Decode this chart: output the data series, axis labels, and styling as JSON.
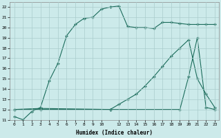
{
  "xlabel": "Humidex (Indice chaleur)",
  "bg_color": "#cceaea",
  "grid_color": "#aacccc",
  "line_color": "#1a6b5a",
  "ylim": [
    11,
    22.5
  ],
  "xlim": [
    -0.5,
    23.5
  ],
  "yticks": [
    11,
    12,
    13,
    14,
    15,
    16,
    17,
    18,
    19,
    20,
    21,
    22
  ],
  "xticks": [
    0,
    1,
    2,
    3,
    4,
    5,
    6,
    7,
    8,
    9,
    10,
    12,
    13,
    14,
    15,
    16,
    17,
    18,
    19,
    20,
    21,
    22,
    23
  ],
  "line1_x": [
    0,
    1,
    2,
    3,
    4,
    5,
    6,
    7,
    8,
    9,
    10,
    11,
    12,
    13,
    14,
    15,
    16,
    17,
    18,
    19,
    20,
    21,
    22,
    23
  ],
  "line1_y": [
    11.3,
    11.0,
    11.8,
    12.2,
    14.8,
    16.5,
    19.2,
    20.3,
    20.9,
    21.0,
    21.8,
    22.0,
    22.1,
    20.1,
    20.0,
    20.0,
    19.9,
    20.5,
    20.5,
    20.4,
    20.3,
    20.3,
    20.3,
    20.3
  ],
  "line2_x": [
    0,
    3,
    11,
    12,
    13,
    14,
    15,
    16,
    17,
    18,
    19,
    20,
    21,
    22,
    23
  ],
  "line2_y": [
    12.0,
    12.1,
    12.0,
    12.5,
    13.0,
    13.5,
    14.3,
    15.2,
    16.2,
    17.2,
    18.0,
    18.8,
    15.0,
    13.5,
    12.2
  ],
  "line3_x": [
    0,
    3,
    11,
    19,
    20,
    21,
    22,
    23
  ],
  "line3_y": [
    12.0,
    12.0,
    12.0,
    12.0,
    15.2,
    19.0,
    12.2,
    12.0
  ]
}
